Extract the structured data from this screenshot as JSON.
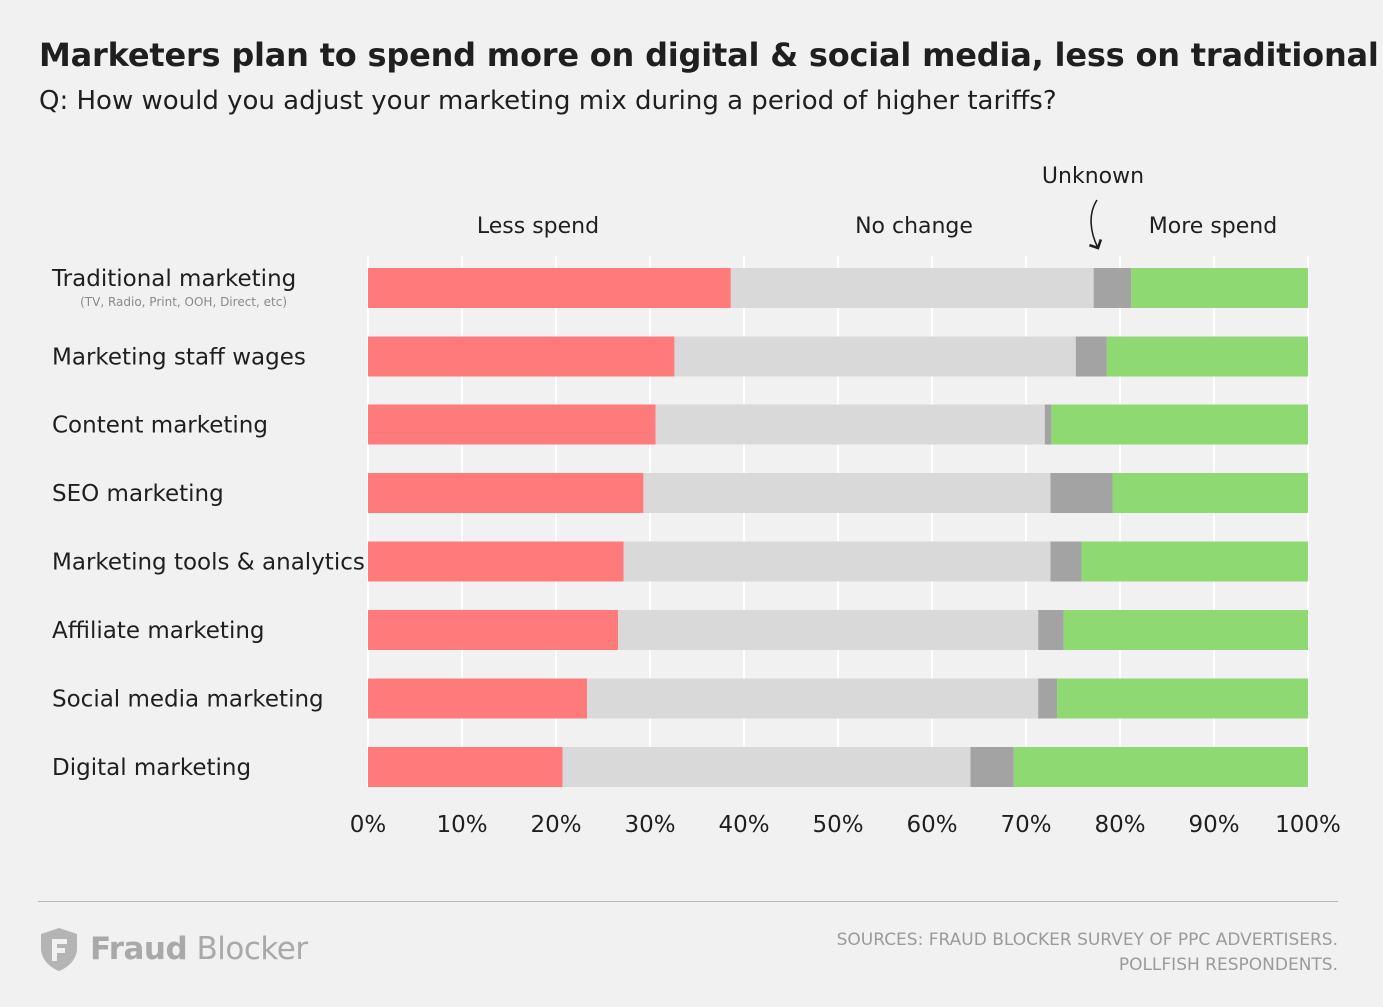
{
  "header": {
    "title": "Marketers plan to spend more on digital & social media, less on traditional",
    "subtitle": "Q: How would you adjust your marketing mix during a period of higher tariffs?"
  },
  "chart_data": {
    "type": "bar",
    "orientation": "horizontal",
    "stacked": true,
    "categories": [
      "Traditional marketing",
      "Marketing staff wages",
      "Content marketing",
      "SEO marketing",
      "Marketing tools & analytics",
      "Affiliate marketing",
      "Social media marketing",
      "Digital marketing"
    ],
    "category_notes": [
      "(TV, Radio, Print, OOH, Direct, etc)",
      "",
      "",
      "",
      "",
      "",
      "",
      ""
    ],
    "series": [
      {
        "name": "Less spend",
        "color": "#ff7b7b",
        "values": [
          38.6,
          32.6,
          30.6,
          29.3,
          27.2,
          26.6,
          23.3,
          20.7
        ]
      },
      {
        "name": "No change",
        "color": "#d9d9d9",
        "values": [
          38.6,
          42.7,
          41.4,
          43.3,
          45.4,
          44.7,
          48.0,
          43.4
        ]
      },
      {
        "name": "Unknown",
        "color": "#a3a3a3",
        "values": [
          4.0,
          3.3,
          0.7,
          6.6,
          3.3,
          2.7,
          2.0,
          4.6
        ]
      },
      {
        "name": "More spend",
        "color": "#8ed972",
        "values": [
          18.8,
          21.4,
          27.3,
          20.8,
          24.1,
          26.0,
          26.7,
          31.3
        ]
      }
    ],
    "series_labels": {
      "less": "Less spend",
      "nochange": "No change",
      "unknown": "Unknown",
      "more": "More spend"
    },
    "xlim": [
      0,
      100
    ],
    "xticks": [
      "0%",
      "10%",
      "20%",
      "30%",
      "40%",
      "50%",
      "60%",
      "70%",
      "80%",
      "90%",
      "100%"
    ],
    "grid": true
  },
  "footer": {
    "logo_bold": "Fraud",
    "logo_light": "Blocker",
    "source_line1": "SOURCES: FRAUD BLOCKER SURVEY OF PPC ADVERTISERS.",
    "source_line2": "POLLFISH RESPONDENTS."
  }
}
